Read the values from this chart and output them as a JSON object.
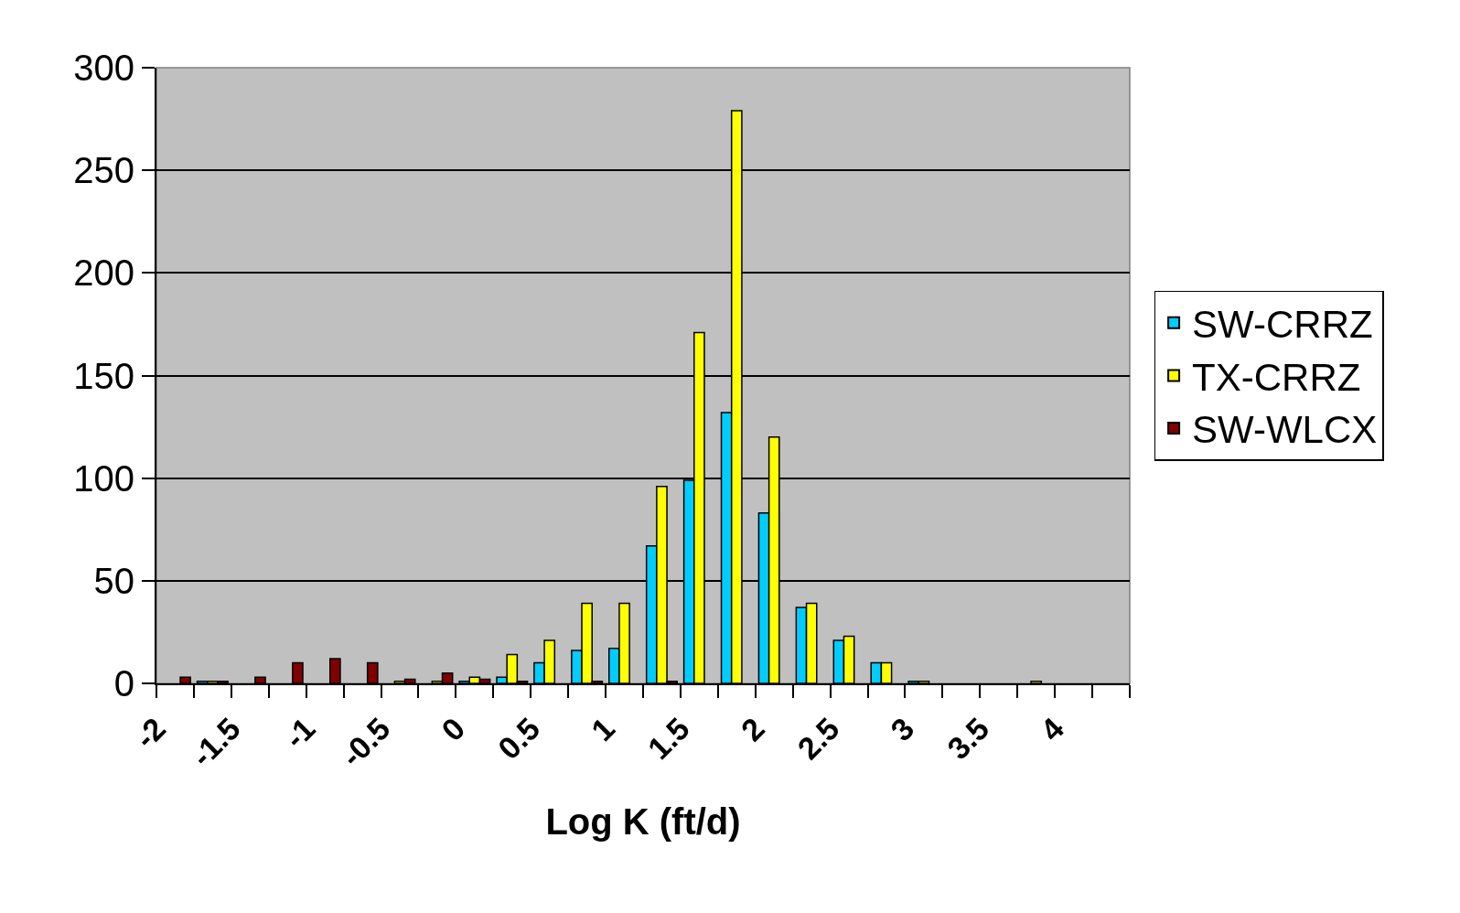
{
  "chart_data": {
    "type": "bar",
    "xlabel": "Log K (ft/d)",
    "x": [
      -1.875,
      -1.625,
      -1.375,
      -1.125,
      -0.875,
      -0.625,
      -0.375,
      -0.125,
      0.125,
      0.375,
      0.625,
      0.875,
      1.125,
      1.375,
      1.625,
      1.875,
      2.125,
      2.375,
      2.625,
      2.875,
      3.125,
      3.375,
      3.625,
      3.875,
      4.125,
      4.375
    ],
    "series": [
      {
        "name": "SW-CRRZ",
        "color": "#00ccff",
        "values": [
          0,
          1,
          0,
          0,
          0,
          0,
          0,
          0,
          1,
          3,
          10,
          16,
          17,
          67,
          99,
          132,
          83,
          37,
          21,
          10,
          1,
          0,
          0,
          0,
          0,
          0
        ]
      },
      {
        "name": "TX-CRRZ",
        "color": "#ffff00",
        "values": [
          0,
          1,
          0,
          0,
          0,
          0,
          1,
          1,
          3,
          14,
          21,
          39,
          39,
          96,
          171,
          279,
          120,
          39,
          23,
          10,
          1,
          0,
          0,
          1,
          0,
          0
        ]
      },
      {
        "name": "SW-WLCX",
        "color": "#800000",
        "values": [
          3,
          1,
          3,
          10,
          12,
          10,
          2,
          5,
          2,
          1,
          0,
          1,
          0,
          1,
          0,
          0,
          0,
          0,
          0,
          0,
          0,
          0,
          0,
          0,
          0,
          0
        ]
      }
    ],
    "xlim": [
      -2,
      4.5
    ],
    "xticks": [
      -2,
      {
        "value": -1.75,
        "label": null
      },
      -1.5,
      {
        "value": -1.25,
        "label": null
      },
      -1,
      {
        "value": -0.75,
        "label": null
      },
      -0.5,
      {
        "value": -0.25,
        "label": null
      },
      0,
      {
        "value": 0.25,
        "label": null
      },
      0.5,
      {
        "value": 0.75,
        "label": null
      },
      1,
      {
        "value": 1.25,
        "label": null
      },
      1.5,
      {
        "value": 1.75,
        "label": null
      },
      2,
      {
        "value": 2.25,
        "label": null
      },
      2.5,
      {
        "value": 2.75,
        "label": null
      },
      3,
      {
        "value": 3.25,
        "label": null
      },
      3.5,
      {
        "value": 3.75,
        "label": null
      },
      4,
      {
        "value": 4.25,
        "label": null
      },
      {
        "value": 4.5,
        "label": null
      }
    ],
    "ylim": [
      0,
      300
    ],
    "yticks": [
      0,
      50,
      100,
      150,
      200,
      250,
      300
    ],
    "grid": "y",
    "legend": "right"
  }
}
